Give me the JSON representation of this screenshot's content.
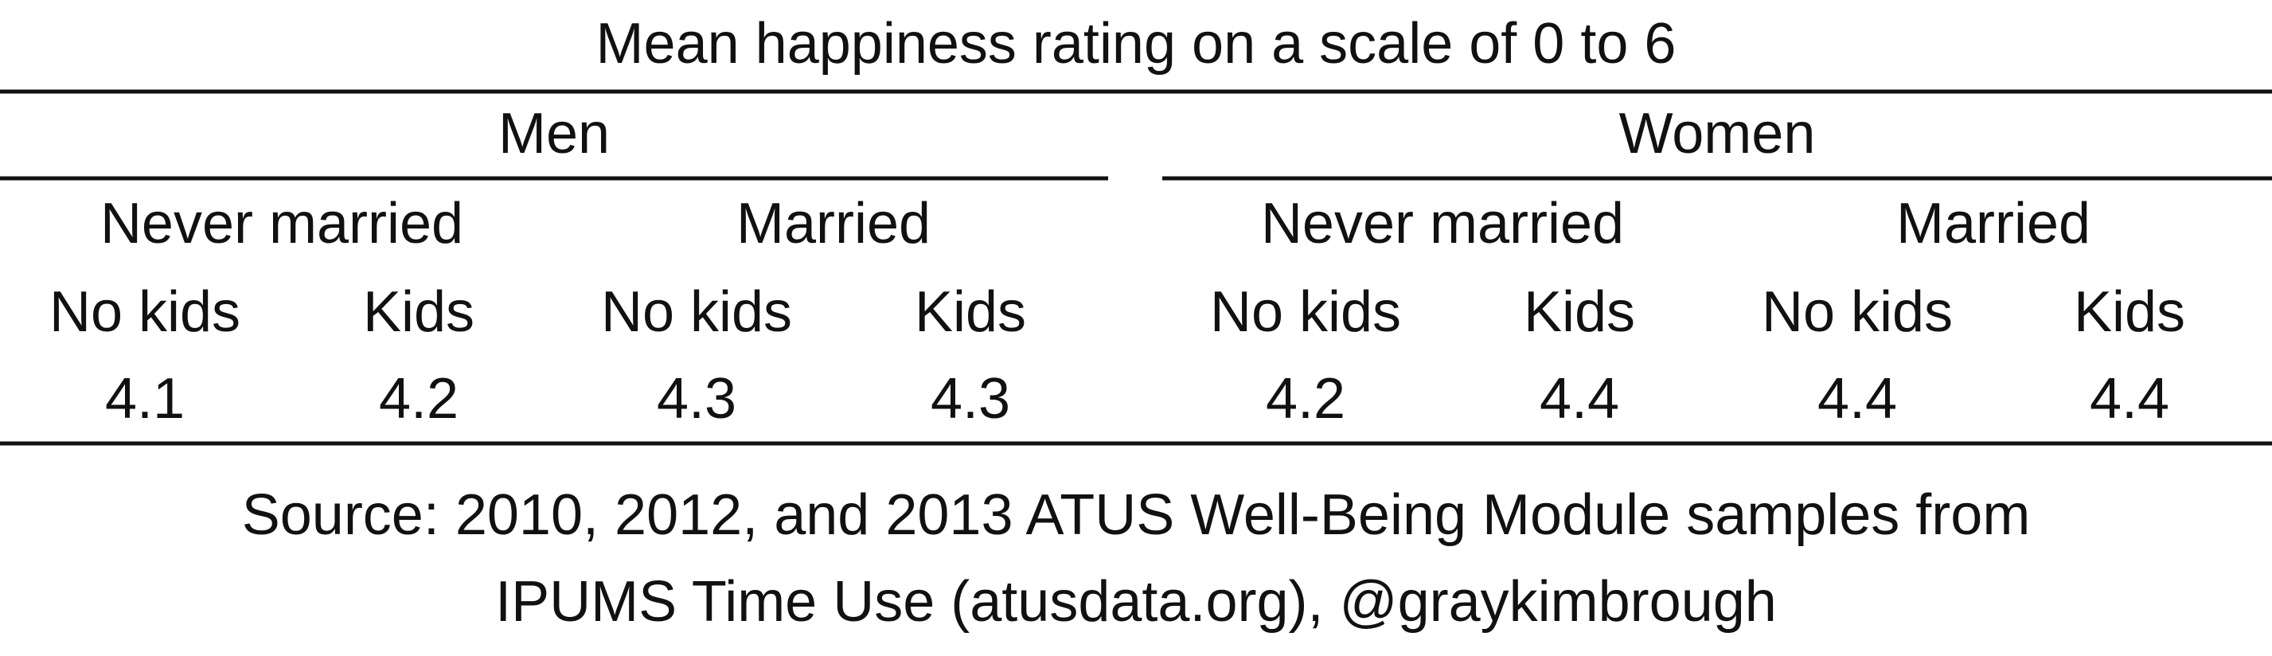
{
  "title": "Mean happiness rating on a scale of 0 to 6",
  "groups": [
    {
      "label": "Men",
      "subgroups": [
        {
          "label": "Never married",
          "columns": [
            {
              "label": "No kids",
              "value": 4.1
            },
            {
              "label": "Kids",
              "value": 4.2
            }
          ]
        },
        {
          "label": "Married",
          "columns": [
            {
              "label": "No kids",
              "value": 4.3
            },
            {
              "label": "Kids",
              "value": 4.3
            }
          ]
        }
      ]
    },
    {
      "label": "Women",
      "subgroups": [
        {
          "label": "Never married",
          "columns": [
            {
              "label": "No kids",
              "value": 4.2
            },
            {
              "label": "Kids",
              "value": 4.4
            }
          ]
        },
        {
          "label": "Married",
          "columns": [
            {
              "label": "No kids",
              "value": 4.4
            },
            {
              "label": "Kids",
              "value": 4.4
            }
          ]
        }
      ]
    }
  ],
  "source": [
    "Source: 2010, 2012, and 2013 ATUS Well-Being Module samples from",
    "IPUMS Time Use (atusdata.org), @graykimbrough"
  ]
}
